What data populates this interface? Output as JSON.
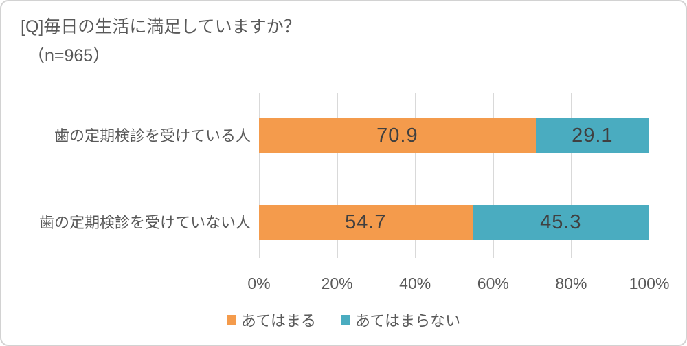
{
  "title": "[Q]毎日の生活に満足していますか？",
  "subtitle": "（n=965）",
  "colors": {
    "background": "#ffffff",
    "border": "#d2d2d2",
    "gridline": "#d9d9d9",
    "text": "#595959",
    "data_label": "#404040",
    "series_applies": "#f49b4c",
    "series_not_applies": "#4aacc0"
  },
  "chart_data": {
    "type": "bar",
    "orientation": "horizontal",
    "stacked": true,
    "title": "[Q]毎日の生活に満足していますか？（n=965）",
    "categories": [
      "歯の定期検診を受けている人",
      "歯の定期検診を受けていない人"
    ],
    "series": [
      {
        "name": "あてはまる",
        "color": "#f49b4c",
        "values": [
          70.9,
          54.7
        ]
      },
      {
        "name": "あてはまらない",
        "color": "#4aacc0",
        "values": [
          29.1,
          45.3
        ]
      }
    ],
    "x_axis": {
      "min": 0,
      "max": 100,
      "unit": "%",
      "ticks": [
        "0%",
        "20%",
        "40%",
        "60%",
        "80%",
        "100%"
      ],
      "grid": true
    },
    "legend_position": "bottom"
  }
}
